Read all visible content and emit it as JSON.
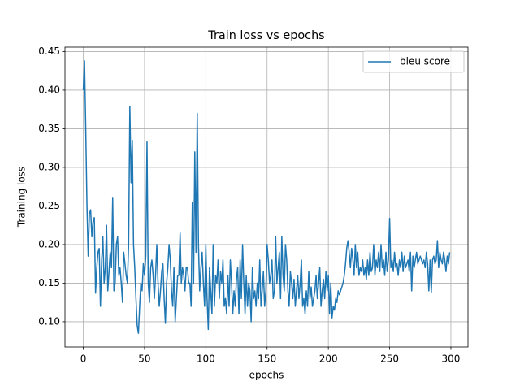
{
  "chart_data": {
    "type": "line",
    "title": "Train loss vs epochs",
    "xlabel": "epochs",
    "ylabel": "Training loss",
    "x": [
      0,
      1,
      2,
      3,
      4,
      5,
      6,
      7,
      8,
      9,
      10,
      11,
      12,
      13,
      14,
      15,
      16,
      17,
      18,
      19,
      20,
      21,
      22,
      23,
      24,
      25,
      26,
      27,
      28,
      29,
      30,
      31,
      32,
      33,
      34,
      35,
      36,
      37,
      38,
      39,
      40,
      41,
      42,
      43,
      44,
      45,
      46,
      47,
      48,
      49,
      50,
      51,
      52,
      53,
      54,
      55,
      56,
      57,
      58,
      59,
      60,
      61,
      62,
      63,
      64,
      65,
      66,
      67,
      68,
      69,
      70,
      71,
      72,
      73,
      74,
      75,
      76,
      77,
      78,
      79,
      80,
      81,
      82,
      83,
      84,
      85,
      86,
      87,
      88,
      89,
      90,
      91,
      92,
      93,
      94,
      95,
      96,
      97,
      98,
      99,
      100,
      101,
      102,
      103,
      104,
      105,
      106,
      107,
      108,
      109,
      110,
      111,
      112,
      113,
      114,
      115,
      116,
      117,
      118,
      119,
      120,
      121,
      122,
      123,
      124,
      125,
      126,
      127,
      128,
      129,
      130,
      131,
      132,
      133,
      134,
      135,
      136,
      137,
      138,
      139,
      140,
      141,
      142,
      143,
      144,
      145,
      146,
      147,
      148,
      149,
      150,
      151,
      152,
      153,
      154,
      155,
      156,
      157,
      158,
      159,
      160,
      161,
      162,
      163,
      164,
      165,
      166,
      167,
      168,
      169,
      170,
      171,
      172,
      173,
      174,
      175,
      176,
      177,
      178,
      179,
      180,
      181,
      182,
      183,
      184,
      185,
      186,
      187,
      188,
      189,
      190,
      191,
      192,
      193,
      194,
      195,
      196,
      197,
      198,
      199,
      200,
      201,
      202,
      203,
      204,
      205,
      206,
      207,
      208,
      209,
      210,
      211,
      212,
      213,
      214,
      215,
      216,
      217,
      218,
      219,
      220,
      221,
      222,
      223,
      224,
      225,
      226,
      227,
      228,
      229,
      230,
      231,
      232,
      233,
      234,
      235,
      236,
      237,
      238,
      239,
      240,
      241,
      242,
      243,
      244,
      245,
      246,
      247,
      248,
      249,
      250,
      251,
      252,
      253,
      254,
      255,
      256,
      257,
      258,
      259,
      260,
      261,
      262,
      263,
      264,
      265,
      266,
      267,
      268,
      269,
      270,
      271,
      272,
      273,
      274,
      275,
      276,
      277,
      278,
      279,
      280,
      281,
      282,
      283,
      284,
      285,
      286,
      287,
      288,
      289,
      290,
      291,
      292,
      293,
      294,
      295,
      296,
      297,
      298,
      299
    ],
    "series": [
      {
        "name": "bleu score",
        "color": "#1f77b4",
        "values": [
          0.4,
          0.438,
          0.35,
          0.25,
          0.185,
          0.24,
          0.245,
          0.21,
          0.23,
          0.235,
          0.137,
          0.17,
          0.19,
          0.195,
          0.12,
          0.18,
          0.21,
          0.15,
          0.17,
          0.225,
          0.14,
          0.165,
          0.19,
          0.17,
          0.26,
          0.14,
          0.15,
          0.2,
          0.21,
          0.16,
          0.17,
          0.15,
          0.125,
          0.19,
          0.175,
          0.16,
          0.15,
          0.2,
          0.379,
          0.28,
          0.335,
          0.2,
          0.17,
          0.13,
          0.095,
          0.085,
          0.12,
          0.15,
          0.14,
          0.175,
          0.16,
          0.185,
          0.333,
          0.15,
          0.125,
          0.17,
          0.18,
          0.16,
          0.13,
          0.16,
          0.2,
          0.15,
          0.12,
          0.14,
          0.165,
          0.175,
          0.13,
          0.098,
          0.15,
          0.17,
          0.2,
          0.18,
          0.14,
          0.12,
          0.17,
          0.1,
          0.13,
          0.16,
          0.16,
          0.215,
          0.15,
          0.17,
          0.16,
          0.14,
          0.17,
          0.17,
          0.15,
          0.15,
          0.12,
          0.255,
          0.15,
          0.32,
          0.19,
          0.37,
          0.2,
          0.14,
          0.17,
          0.19,
          0.15,
          0.12,
          0.2,
          0.13,
          0.09,
          0.17,
          0.14,
          0.11,
          0.2,
          0.12,
          0.16,
          0.15,
          0.18,
          0.13,
          0.165,
          0.15,
          0.18,
          0.12,
          0.13,
          0.11,
          0.16,
          0.12,
          0.18,
          0.15,
          0.11,
          0.14,
          0.12,
          0.155,
          0.17,
          0.11,
          0.18,
          0.13,
          0.2,
          0.15,
          0.11,
          0.16,
          0.12,
          0.15,
          0.14,
          0.1,
          0.17,
          0.13,
          0.14,
          0.12,
          0.15,
          0.13,
          0.18,
          0.12,
          0.14,
          0.165,
          0.12,
          0.14,
          0.2,
          0.18,
          0.15,
          0.16,
          0.18,
          0.13,
          0.14,
          0.21,
          0.15,
          0.17,
          0.19,
          0.13,
          0.21,
          0.16,
          0.14,
          0.2,
          0.18,
          0.14,
          0.12,
          0.165,
          0.15,
          0.13,
          0.155,
          0.12,
          0.14,
          0.16,
          0.13,
          0.15,
          0.18,
          0.12,
          0.13,
          0.11,
          0.14,
          0.12,
          0.165,
          0.13,
          0.145,
          0.12,
          0.13,
          0.14,
          0.16,
          0.13,
          0.15,
          0.17,
          0.12,
          0.14,
          0.155,
          0.13,
          0.165,
          0.14,
          0.16,
          0.11,
          0.15,
          0.105,
          0.12,
          0.115,
          0.13,
          0.125,
          0.14,
          0.135,
          0.14,
          0.145,
          0.15,
          0.16,
          0.175,
          0.195,
          0.205,
          0.19,
          0.17,
          0.195,
          0.18,
          0.16,
          0.2,
          0.17,
          0.19,
          0.16,
          0.17,
          0.165,
          0.18,
          0.16,
          0.17,
          0.155,
          0.18,
          0.16,
          0.19,
          0.165,
          0.17,
          0.2,
          0.16,
          0.18,
          0.17,
          0.19,
          0.165,
          0.2,
          0.17,
          0.18,
          0.16,
          0.19,
          0.165,
          0.18,
          0.234,
          0.17,
          0.18,
          0.165,
          0.19,
          0.17,
          0.175,
          0.16,
          0.18,
          0.17,
          0.19,
          0.165,
          0.185,
          0.17,
          0.175,
          0.18,
          0.165,
          0.19,
          0.14,
          0.185,
          0.17,
          0.18,
          0.19,
          0.175,
          0.18,
          0.185,
          0.18,
          0.175,
          0.18,
          0.17,
          0.19,
          0.175,
          0.14,
          0.18,
          0.138,
          0.18,
          0.185,
          0.175,
          0.18,
          0.205,
          0.17,
          0.19,
          0.18,
          0.175,
          0.19,
          0.18,
          0.165,
          0.185,
          0.175,
          0.19
        ]
      }
    ],
    "xlim": [
      -14.95,
      313.95
    ],
    "xticks": [
      0,
      50,
      100,
      150,
      200,
      250,
      300
    ],
    "ylim": [
      0.0673,
      0.4557
    ],
    "yticks": [
      {
        "value": 0.1,
        "label": "0.10"
      },
      0.15,
      {
        "value": 0.2,
        "label": "0.20"
      },
      0.25,
      {
        "value": 0.3,
        "label": "0.30"
      },
      0.35,
      {
        "value": 0.4,
        "label": "0.40"
      },
      0.45
    ],
    "grid": true,
    "legend": "upper right"
  }
}
